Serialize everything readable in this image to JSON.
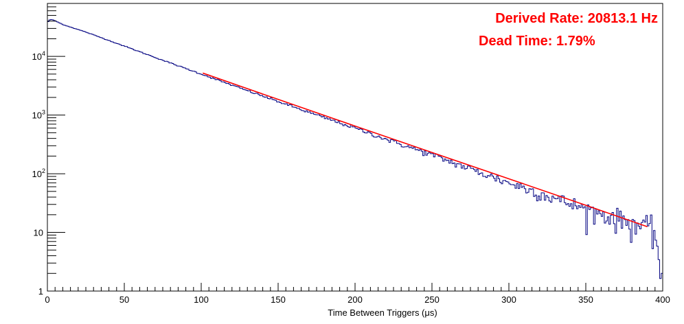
{
  "chart_data": {
    "type": "line",
    "xlabel": "Time Between Triggers (μs)",
    "ylabel": "",
    "xlim": [
      0,
      400
    ],
    "ylim": [
      1,
      80000
    ],
    "yscale": "log",
    "grid": false,
    "x_ticks": [
      0,
      50,
      100,
      150,
      200,
      250,
      300,
      350,
      400
    ],
    "x_tick_labels": [
      "0",
      "50",
      "100",
      "150",
      "200",
      "250",
      "300",
      "350",
      "400"
    ],
    "y_ticks": [
      1,
      10,
      100,
      1000,
      10000
    ],
    "y_tick_labels": [
      {
        "base": "1",
        "exp": ""
      },
      {
        "base": "10",
        "exp": ""
      },
      {
        "base": "10",
        "exp": "2"
      },
      {
        "base": "10",
        "exp": "3"
      },
      {
        "base": "10",
        "exp": "4"
      }
    ],
    "annotations": [
      {
        "text": "Derived Rate: 20813.1 Hz"
      },
      {
        "text": "Dead Time: 1.79%"
      }
    ],
    "series": [
      {
        "kind": "histogram",
        "color": "#000080",
        "bin_width": 1,
        "x_start": 0,
        "x_end": 400,
        "model": {
          "A": 43000,
          "rate_per_us": 0.0207
        },
        "x": [
          0,
          2,
          5,
          10,
          25,
          50,
          75,
          100,
          125,
          150,
          175,
          200,
          225,
          250,
          275,
          300,
          325,
          350,
          375,
          395,
          399,
          400
        ],
        "y": [
          38000,
          43000,
          40500,
          35000,
          26000,
          15000,
          8600,
          5000,
          2900,
          1700,
          1000,
          600,
          350,
          210,
          120,
          70,
          42,
          25,
          16,
          11,
          2,
          2
        ]
      },
      {
        "kind": "fit",
        "color": "#ff0000",
        "x": [
          101,
          150,
          200,
          250,
          300,
          350,
          390
        ],
        "y": [
          5200,
          1850,
          650,
          230,
          82,
          29,
          12.5
        ]
      }
    ]
  }
}
